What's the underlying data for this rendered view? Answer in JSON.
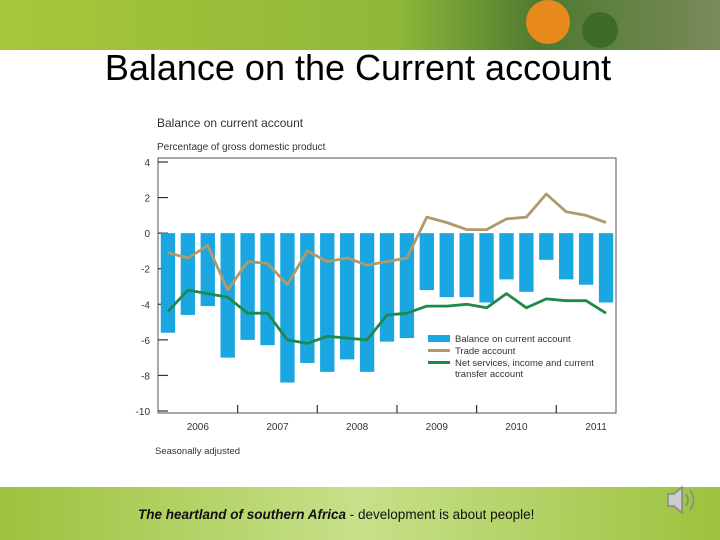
{
  "slide_title": "Balance on the Current account",
  "footer": {
    "emphasis": "The heartland of southern Africa",
    "text": " - development is about people!"
  },
  "chart_data": {
    "type": "bar",
    "title": "Balance on current account",
    "subtitle": "Percentage of gross domestic product",
    "note": "Seasonally adjusted",
    "categories": [
      null,
      "2006",
      null,
      null,
      null,
      "2007",
      null,
      null,
      null,
      "2008",
      null,
      null,
      null,
      "2009",
      null,
      null,
      null,
      "2010",
      null,
      null,
      null,
      "2011",
      null
    ],
    "series": [
      {
        "name": "Balance on current account",
        "type": "bar",
        "color": "#1aa6e0",
        "values": [
          -5.6,
          -4.6,
          -4.1,
          -7.0,
          -6.0,
          -6.3,
          -8.4,
          -7.3,
          -7.8,
          -7.1,
          -7.8,
          -6.1,
          -5.9,
          -3.2,
          -3.6,
          -3.6,
          -3.9,
          -2.6,
          -3.3,
          -1.5,
          -2.6,
          -2.9,
          -3.9
        ]
      },
      {
        "name": "Trade account",
        "type": "line",
        "color": "#b09a6a",
        "values": [
          -1.1,
          -1.4,
          -0.7,
          -3.2,
          -1.6,
          -1.7,
          -2.9,
          -1.0,
          -1.6,
          -1.4,
          -1.8,
          -1.6,
          -1.4,
          0.9,
          0.6,
          0.2,
          0.2,
          0.8,
          0.9,
          2.2,
          1.2,
          1.0,
          0.6
        ]
      },
      {
        "name": "Net services, income and current transfer account",
        "type": "line",
        "color": "#1e8a4a",
        "values": [
          -4.4,
          -3.2,
          -3.4,
          -3.6,
          -4.5,
          -4.5,
          -6.0,
          -6.2,
          -5.8,
          -5.9,
          -6.0,
          -4.6,
          -4.5,
          -4.1,
          -4.1,
          -4.0,
          -4.2,
          -3.4,
          -4.2,
          -3.7,
          -3.8,
          -3.8,
          -4.5
        ]
      }
    ],
    "ylim": [
      -10,
      4
    ],
    "yticks": [
      -10,
      -8,
      -6,
      -4,
      -2,
      0,
      2,
      4
    ]
  }
}
